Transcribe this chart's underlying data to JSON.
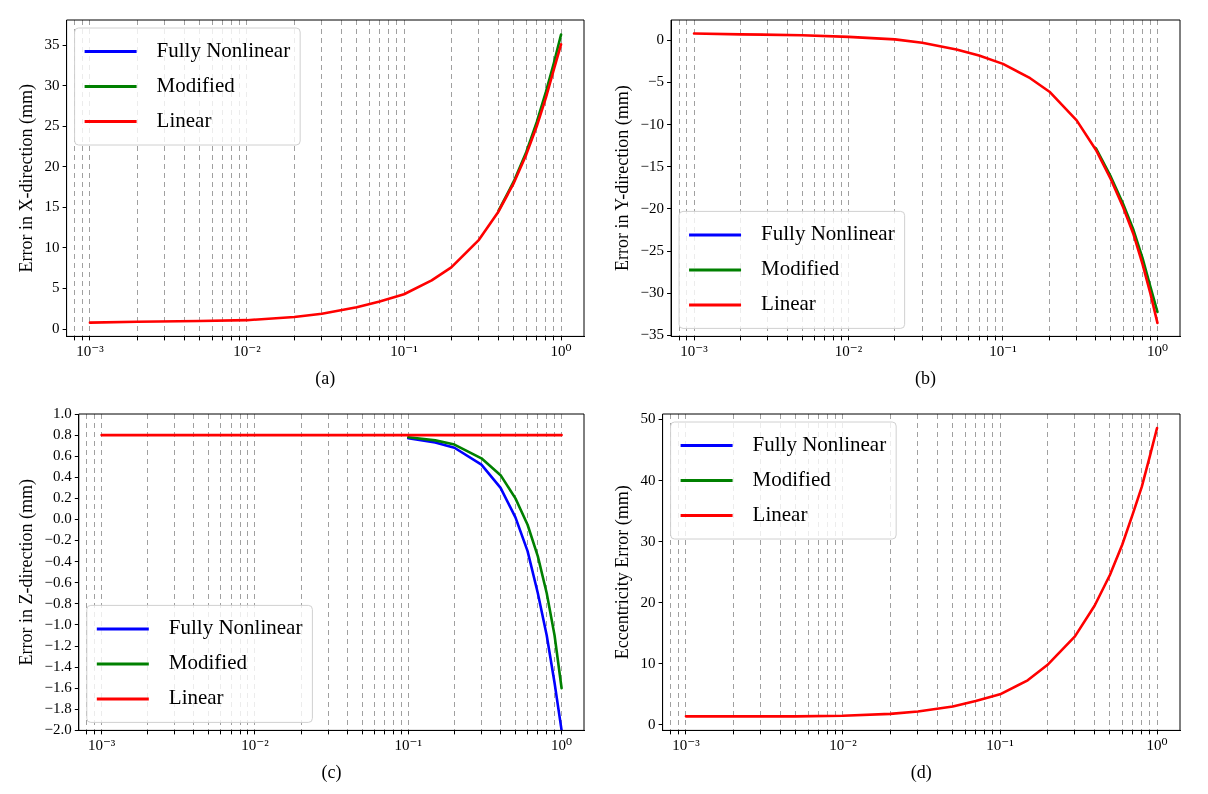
{
  "chart_data": [
    {
      "type": "line",
      "xlabel": "(a)",
      "ylabel": "Error in X-direction (mm)",
      "log": "x",
      "grid": "x",
      "legend": "top left",
      "line_style": "solid",
      "marker": "none",
      "x": [
        0.001,
        0.002,
        0.005,
        0.01,
        0.02,
        0.03,
        0.05,
        0.07,
        0.1,
        0.15,
        0.2,
        0.3,
        0.4,
        0.5,
        0.6,
        0.7,
        0.8,
        0.9,
        1.0
      ],
      "xlim": [
        0.00071,
        1.4
      ],
      "ylim": [
        -0.9,
        38.1
      ],
      "xticks": [
        {
          "value": 0.0008,
          "label": null
        },
        {
          "value": 0.0009,
          "label": null
        },
        {
          "value": 0.001,
          "label": "10⁻³"
        },
        {
          "value": 0.002,
          "label": null
        },
        {
          "value": 0.003,
          "label": null
        },
        {
          "value": 0.004,
          "label": null
        },
        {
          "value": 0.005,
          "label": null
        },
        {
          "value": 0.006,
          "label": null
        },
        {
          "value": 0.007,
          "label": null
        },
        {
          "value": 0.008,
          "label": null
        },
        {
          "value": 0.009,
          "label": null
        },
        {
          "value": 0.01,
          "label": "10⁻²"
        },
        {
          "value": 0.02,
          "label": null
        },
        {
          "value": 0.03,
          "label": null
        },
        {
          "value": 0.04,
          "label": null
        },
        {
          "value": 0.05,
          "label": null
        },
        {
          "value": 0.06,
          "label": null
        },
        {
          "value": 0.07,
          "label": null
        },
        {
          "value": 0.08,
          "label": null
        },
        {
          "value": 0.09,
          "label": null
        },
        {
          "value": 0.1,
          "label": "10⁻¹"
        },
        {
          "value": 0.2,
          "label": null
        },
        {
          "value": 0.3,
          "label": null
        },
        {
          "value": 0.4,
          "label": null
        },
        {
          "value": 0.5,
          "label": null
        },
        {
          "value": 0.6,
          "label": null
        },
        {
          "value": 0.7,
          "label": null
        },
        {
          "value": 0.8,
          "label": null
        },
        {
          "value": 0.9,
          "label": null
        },
        {
          "value": 1,
          "label": "10⁰"
        }
      ],
      "yticks": [
        0,
        5,
        10,
        15,
        20,
        25,
        30,
        35
      ],
      "series": [
        {
          "name": "Fully Nonlinear",
          "color": "#0000ff",
          "values": [
            null,
            null,
            null,
            null,
            null,
            null,
            null,
            null,
            null,
            null,
            null,
            null,
            null,
            null,
            null,
            null,
            null,
            null,
            null
          ]
        },
        {
          "name": "Modified",
          "color": "#008000",
          "values": [
            null,
            null,
            null,
            null,
            null,
            null,
            null,
            null,
            null,
            null,
            null,
            null,
            14.6,
            18.2,
            21.8,
            25.5,
            29.2,
            32.8,
            36.3
          ]
        },
        {
          "name": "Linear",
          "color": "#ff0000",
          "values": [
            0.8,
            0.9,
            1.0,
            1.1,
            1.5,
            1.9,
            2.7,
            3.4,
            4.3,
            6,
            7.6,
            11,
            14.5,
            18,
            21.5,
            25,
            28.5,
            32,
            35.1
          ]
        }
      ]
    },
    {
      "type": "line",
      "xlabel": "(b)",
      "ylabel": "Error in Y-direction (mm)",
      "log": "x",
      "grid": "x",
      "legend": "bottom left",
      "line_style": "solid",
      "marker": "none",
      "x": [
        0.001,
        0.002,
        0.005,
        0.01,
        0.02,
        0.03,
        0.05,
        0.07,
        0.1,
        0.15,
        0.2,
        0.3,
        0.4,
        0.5,
        0.6,
        0.7,
        0.8,
        0.9,
        1.0
      ],
      "xlim": [
        0.00071,
        1.4
      ],
      "ylim": [
        -35.1,
        2.4
      ],
      "xticks": [
        {
          "value": 0.0008,
          "label": null
        },
        {
          "value": 0.0009,
          "label": null
        },
        {
          "value": 0.001,
          "label": "10⁻³"
        },
        {
          "value": 0.002,
          "label": null
        },
        {
          "value": 0.003,
          "label": null
        },
        {
          "value": 0.004,
          "label": null
        },
        {
          "value": 0.005,
          "label": null
        },
        {
          "value": 0.006,
          "label": null
        },
        {
          "value": 0.007,
          "label": null
        },
        {
          "value": 0.008,
          "label": null
        },
        {
          "value": 0.009,
          "label": null
        },
        {
          "value": 0.01,
          "label": "10⁻²"
        },
        {
          "value": 0.02,
          "label": null
        },
        {
          "value": 0.03,
          "label": null
        },
        {
          "value": 0.04,
          "label": null
        },
        {
          "value": 0.05,
          "label": null
        },
        {
          "value": 0.06,
          "label": null
        },
        {
          "value": 0.07,
          "label": null
        },
        {
          "value": 0.08,
          "label": null
        },
        {
          "value": 0.09,
          "label": null
        },
        {
          "value": 0.1,
          "label": "10⁻¹"
        },
        {
          "value": 0.2,
          "label": null
        },
        {
          "value": 0.3,
          "label": null
        },
        {
          "value": 0.4,
          "label": null
        },
        {
          "value": 0.5,
          "label": null
        },
        {
          "value": 0.6,
          "label": null
        },
        {
          "value": 0.7,
          "label": null
        },
        {
          "value": 0.8,
          "label": null
        },
        {
          "value": 0.9,
          "label": null
        },
        {
          "value": 1,
          "label": "10⁰"
        }
      ],
      "yticks": [
        {
          "value": -35,
          "label": "−35"
        },
        {
          "value": -30,
          "label": "−30"
        },
        {
          "value": -25,
          "label": "−25"
        },
        {
          "value": -20,
          "label": "−20"
        },
        {
          "value": -15,
          "label": "−15"
        },
        {
          "value": -10,
          "label": "−10"
        },
        {
          "value": -5,
          "label": "−5"
        },
        0
      ],
      "series": [
        {
          "name": "Fully Nonlinear",
          "color": "#0000ff",
          "values": [
            null,
            null,
            null,
            null,
            null,
            null,
            null,
            null,
            null,
            null,
            null,
            null,
            null,
            null,
            null,
            null,
            null,
            null,
            null
          ]
        },
        {
          "name": "Modified",
          "color": "#008000",
          "values": [
            null,
            null,
            null,
            null,
            null,
            null,
            null,
            null,
            null,
            null,
            null,
            null,
            -12.8,
            -16.2,
            -19.4,
            -22.5,
            -25.8,
            -29.2,
            -32.2
          ]
        },
        {
          "name": "Linear",
          "color": "#ff0000",
          "values": [
            0.8,
            0.7,
            0.6,
            0.4,
            0.1,
            -0.3,
            -1.1,
            -1.8,
            -2.8,
            -4.5,
            -6.1,
            -9.5,
            -13,
            -16.5,
            -19.8,
            -23,
            -26.5,
            -30,
            -33.5
          ]
        }
      ]
    },
    {
      "type": "line",
      "xlabel": "(c)",
      "ylabel": "Error in Z-direction (mm)",
      "log": "x",
      "grid": "x",
      "legend": "bottom left",
      "line_style": "solid",
      "marker": "none",
      "x": [
        0.001,
        0.002,
        0.005,
        0.01,
        0.02,
        0.03,
        0.05,
        0.07,
        0.1,
        0.15,
        0.2,
        0.3,
        0.4,
        0.5,
        0.6,
        0.7,
        0.8,
        0.9,
        1.0
      ],
      "xlim": [
        0.00071,
        1.4
      ],
      "ylim": [
        -2,
        1
      ],
      "xticks": [
        {
          "value": 0.0008,
          "label": null
        },
        {
          "value": 0.0009,
          "label": null
        },
        {
          "value": 0.001,
          "label": "10⁻³"
        },
        {
          "value": 0.002,
          "label": null
        },
        {
          "value": 0.003,
          "label": null
        },
        {
          "value": 0.004,
          "label": null
        },
        {
          "value": 0.005,
          "label": null
        },
        {
          "value": 0.006,
          "label": null
        },
        {
          "value": 0.007,
          "label": null
        },
        {
          "value": 0.008,
          "label": null
        },
        {
          "value": 0.009,
          "label": null
        },
        {
          "value": 0.01,
          "label": "10⁻²"
        },
        {
          "value": 0.02,
          "label": null
        },
        {
          "value": 0.03,
          "label": null
        },
        {
          "value": 0.04,
          "label": null
        },
        {
          "value": 0.05,
          "label": null
        },
        {
          "value": 0.06,
          "label": null
        },
        {
          "value": 0.07,
          "label": null
        },
        {
          "value": 0.08,
          "label": null
        },
        {
          "value": 0.09,
          "label": null
        },
        {
          "value": 0.1,
          "label": "10⁻¹"
        },
        {
          "value": 0.2,
          "label": null
        },
        {
          "value": 0.3,
          "label": null
        },
        {
          "value": 0.4,
          "label": null
        },
        {
          "value": 0.5,
          "label": null
        },
        {
          "value": 0.6,
          "label": null
        },
        {
          "value": 0.7,
          "label": null
        },
        {
          "value": 0.8,
          "label": null
        },
        {
          "value": 0.9,
          "label": null
        },
        {
          "value": 1,
          "label": "10⁰"
        }
      ],
      "yticks": [
        {
          "value": -2,
          "label": "−2.0"
        },
        {
          "value": -1.8,
          "label": "−1.8"
        },
        {
          "value": -1.6,
          "label": "−1.6"
        },
        {
          "value": -1.4,
          "label": "−1.4"
        },
        {
          "value": -1.2,
          "label": "−1.2"
        },
        {
          "value": -1,
          "label": "−1.0"
        },
        {
          "value": -0.8,
          "label": "−0.8"
        },
        {
          "value": -0.6,
          "label": "−0.6"
        },
        {
          "value": -0.4,
          "label": "−0.4"
        },
        {
          "value": -0.2,
          "label": "−0.2"
        },
        {
          "value": 0,
          "label": "0.0"
        },
        0.2,
        0.4,
        0.6,
        0.8,
        {
          "value": 1,
          "label": "1.0"
        }
      ],
      "series": [
        {
          "name": "Fully Nonlinear",
          "color": "#0000ff",
          "values": [
            null,
            null,
            null,
            null,
            null,
            null,
            null,
            null,
            0.77,
            0.73,
            0.68,
            0.52,
            0.3,
            0.02,
            -0.3,
            -0.7,
            -1.1,
            -1.55,
            -2.0
          ]
        },
        {
          "name": "Modified",
          "color": "#008000",
          "values": [
            null,
            null,
            null,
            null,
            null,
            null,
            null,
            null,
            0.78,
            0.75,
            0.71,
            0.58,
            0.42,
            0.2,
            -0.05,
            -0.35,
            -0.7,
            -1.1,
            -1.6
          ]
        },
        {
          "name": "Linear",
          "color": "#ff0000",
          "values": [
            0.8,
            0.8,
            0.8,
            0.8,
            0.8,
            0.8,
            0.8,
            0.8,
            0.8,
            0.8,
            0.8,
            0.8,
            0.8,
            0.8,
            0.8,
            0.8,
            0.8,
            0.8,
            0.8
          ]
        }
      ]
    },
    {
      "type": "line",
      "xlabel": "(d)",
      "ylabel": "Eccentricity Error (mm)",
      "log": "x",
      "grid": "x",
      "legend": "top left",
      "line_style": "solid",
      "marker": "none",
      "x": [
        0.001,
        0.002,
        0.005,
        0.01,
        0.02,
        0.03,
        0.05,
        0.07,
        0.1,
        0.15,
        0.2,
        0.3,
        0.4,
        0.5,
        0.6,
        0.7,
        0.8,
        0.9,
        1.0
      ],
      "xlim": [
        0.00071,
        1.4
      ],
      "ylim": [
        -0.9,
        50.9
      ],
      "xticks": [
        {
          "value": 0.0008,
          "label": null
        },
        {
          "value": 0.0009,
          "label": null
        },
        {
          "value": 0.001,
          "label": "10⁻³"
        },
        {
          "value": 0.002,
          "label": null
        },
        {
          "value": 0.003,
          "label": null
        },
        {
          "value": 0.004,
          "label": null
        },
        {
          "value": 0.005,
          "label": null
        },
        {
          "value": 0.006,
          "label": null
        },
        {
          "value": 0.007,
          "label": null
        },
        {
          "value": 0.008,
          "label": null
        },
        {
          "value": 0.009,
          "label": null
        },
        {
          "value": 0.01,
          "label": "10⁻²"
        },
        {
          "value": 0.02,
          "label": null
        },
        {
          "value": 0.03,
          "label": null
        },
        {
          "value": 0.04,
          "label": null
        },
        {
          "value": 0.05,
          "label": null
        },
        {
          "value": 0.06,
          "label": null
        },
        {
          "value": 0.07,
          "label": null
        },
        {
          "value": 0.08,
          "label": null
        },
        {
          "value": 0.09,
          "label": null
        },
        {
          "value": 0.1,
          "label": "10⁻¹"
        },
        {
          "value": 0.2,
          "label": null
        },
        {
          "value": 0.3,
          "label": null
        },
        {
          "value": 0.4,
          "label": null
        },
        {
          "value": 0.5,
          "label": null
        },
        {
          "value": 0.6,
          "label": null
        },
        {
          "value": 0.7,
          "label": null
        },
        {
          "value": 0.8,
          "label": null
        },
        {
          "value": 0.9,
          "label": null
        },
        {
          "value": 1,
          "label": "10⁰"
        }
      ],
      "yticks": [
        0,
        10,
        20,
        30,
        40,
        50
      ],
      "series": [
        {
          "name": "Fully Nonlinear",
          "color": "#0000ff",
          "values": [
            null,
            null,
            null,
            null,
            null,
            null,
            null,
            null,
            null,
            null,
            null,
            null,
            null,
            null,
            null,
            null,
            null,
            null,
            null
          ]
        },
        {
          "name": "Modified",
          "color": "#008000",
          "values": [
            null,
            null,
            null,
            null,
            null,
            null,
            null,
            null,
            null,
            null,
            null,
            null,
            null,
            null,
            null,
            null,
            null,
            null,
            null
          ]
        },
        {
          "name": "Linear",
          "color": "#ff0000",
          "values": [
            1.4,
            1.4,
            1.4,
            1.5,
            1.8,
            2.2,
            3,
            3.9,
            5,
            7.3,
            9.8,
            14.5,
            19.5,
            24.5,
            29.5,
            34.5,
            39,
            44,
            48.6
          ]
        }
      ]
    }
  ]
}
